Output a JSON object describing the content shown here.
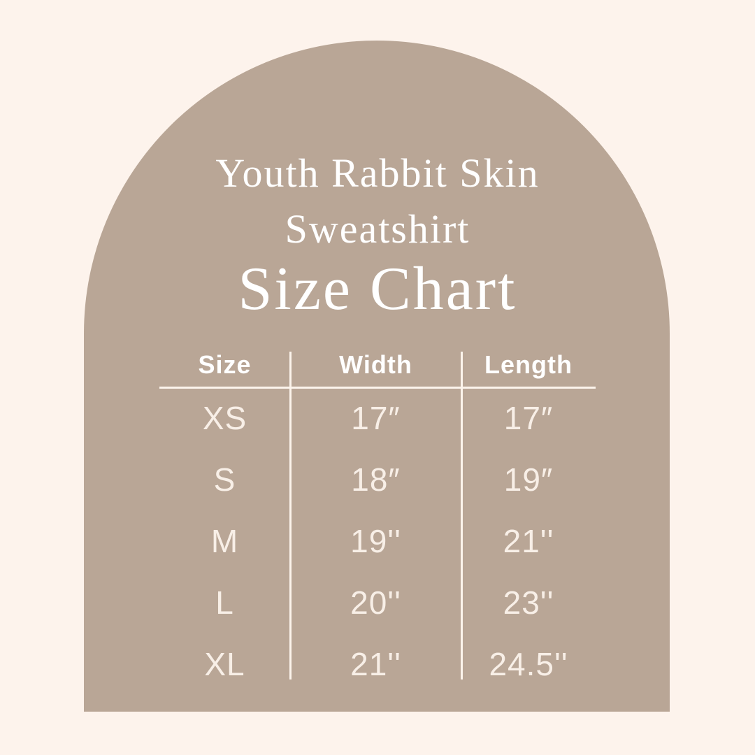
{
  "colors": {
    "background": "#FDF3EC",
    "arch": "#B9A696",
    "title_text": "#FFFFFF",
    "table_text": "#F8EFE7",
    "divider_lines": "#FCF4EC"
  },
  "title": {
    "line1": "Youth Rabbit Skin",
    "line2": "Sweatshirt",
    "heading": "Size Chart"
  },
  "chart_data": {
    "type": "table",
    "product": "Youth Rabbit Skin Sweatshirt",
    "title": "Size Chart",
    "columns": [
      "Size",
      "Width",
      "Length"
    ],
    "rows": [
      [
        "XS",
        "17″",
        "17″"
      ],
      [
        "S",
        "18″",
        "19″"
      ],
      [
        "M",
        "19''",
        "21''"
      ],
      [
        "L",
        "20''",
        "23''"
      ],
      [
        "XL",
        "21''",
        "24.5''"
      ]
    ]
  }
}
